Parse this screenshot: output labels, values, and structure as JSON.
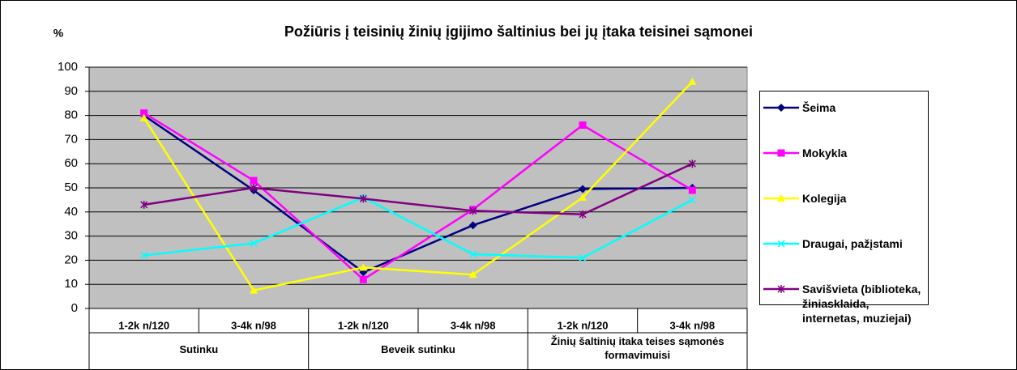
{
  "chart_data": {
    "type": "line",
    "title": "Požiūris į teisinių žinių įgijimo šaltinius bei jų įtaka teisinei sąmonei",
    "y_label": "%",
    "categories": [
      "1-2k n/120",
      "3-4k n/98",
      "1-2k n/120",
      "3-4k n/98",
      "1-2k n/120",
      "3-4k n/98"
    ],
    "category_groups": [
      "Sutinku",
      "Beveik sutinku",
      "Žinių  šaltinių itaka teises sąmonės formavimuisi"
    ],
    "series": [
      {
        "name": "Šeima",
        "color": "#000080",
        "marker": "diamond",
        "values": [
          80,
          49,
          15,
          34.5,
          49.5,
          50
        ]
      },
      {
        "name": "Mokykla",
        "color": "#ff00ff",
        "marker": "square",
        "values": [
          81,
          53,
          12,
          41,
          76,
          49
        ]
      },
      {
        "name": "Kolegija",
        "color": "#ffff00",
        "marker": "triangle",
        "values": [
          79,
          7.5,
          17,
          14,
          46,
          94
        ]
      },
      {
        "name": "Draugai, pažįstami",
        "color": "#00ffff",
        "marker": "x",
        "values": [
          22,
          27,
          46,
          22.5,
          21,
          45
        ]
      },
      {
        "name": "Savišvieta (biblioteka, žiniasklaida, internetas, muziejai)",
        "color": "#800080",
        "marker": "star",
        "values": [
          43,
          50,
          45.5,
          40.5,
          39,
          60
        ]
      }
    ],
    "ylim": [
      0,
      100
    ],
    "yticks": [
      0,
      10,
      20,
      30,
      40,
      50,
      60,
      70,
      80,
      90,
      100
    ],
    "grid": true,
    "legend": "right"
  }
}
